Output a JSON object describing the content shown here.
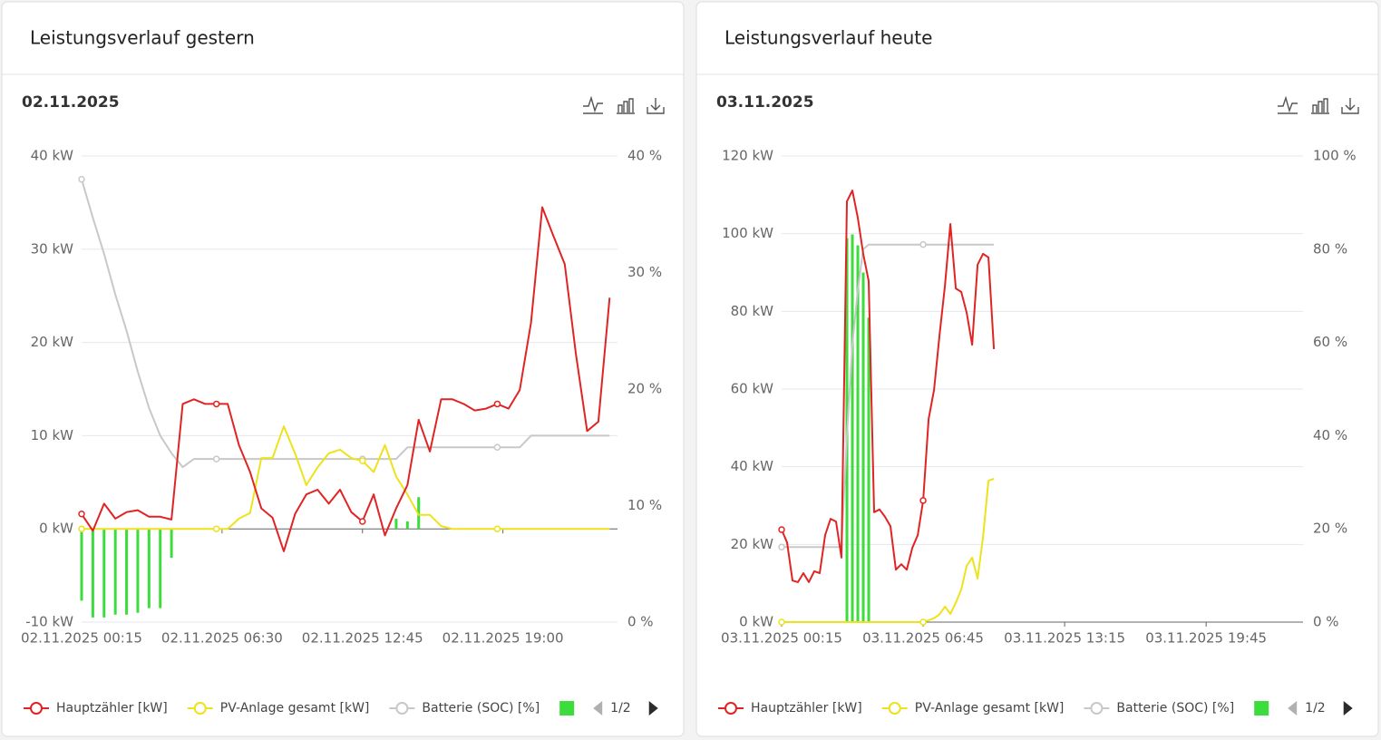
{
  "chart_data": [
    {
      "type": "line",
      "title": "Leistungsverlauf gestern",
      "subtitle": "02.11.2025",
      "legend_page": "1/2",
      "grid": true,
      "x": [
        0.25,
        0.75,
        1.25,
        1.75,
        2.25,
        2.75,
        3.25,
        3.75,
        4.25,
        4.75,
        5.25,
        5.75,
        6.25,
        6.75,
        7.25,
        7.75,
        8.25,
        8.75,
        9.25,
        9.75,
        10.25,
        10.75,
        11.25,
        11.75,
        12.25,
        12.75,
        13.25,
        13.75,
        14.25,
        14.75,
        15.25,
        15.75,
        16.25,
        16.75,
        17.25,
        17.75,
        18.25,
        18.75,
        19.25,
        19.75,
        20.25,
        20.75,
        21.25,
        21.75,
        22.25,
        22.75,
        23.25,
        23.75
      ],
      "xlim": [
        0.25,
        24.1
      ],
      "xticks": [
        {
          "value": 0.25,
          "label": "02.11.2025 00:15"
        },
        {
          "value": 6.5,
          "label": "02.11.2025 06:30"
        },
        {
          "value": 12.75,
          "label": "02.11.2025 12:45"
        },
        {
          "value": 19,
          "label": "02.11.2025 19:00"
        }
      ],
      "ylim": [
        -10,
        40
      ],
      "yticks": [
        {
          "value": -10,
          "label": "-10 kW"
        },
        {
          "value": 0,
          "label": "0 kW"
        },
        {
          "value": 10,
          "label": "10 kW"
        },
        {
          "value": 20,
          "label": "20 kW"
        },
        {
          "value": 30,
          "label": "30 kW"
        },
        {
          "value": 40,
          "label": "40 kW"
        }
      ],
      "y2lim": [
        0,
        40
      ],
      "y2ticks": [
        {
          "value": 0,
          "label": "0 %"
        },
        {
          "value": 10,
          "label": "10 %"
        },
        {
          "value": 20,
          "label": "20 %"
        },
        {
          "value": 30,
          "label": "30 %"
        },
        {
          "value": 40,
          "label": "40 %"
        }
      ],
      "series": [
        {
          "name": "Hauptzähler [kW]",
          "color": "#e02424",
          "values": [
            1.6,
            -0.2,
            2.7,
            1.1,
            1.8,
            2,
            1.3,
            1.3,
            1,
            13.4,
            13.9,
            13.4,
            13.4,
            13.4,
            9,
            6.1,
            2.2,
            1.2,
            -2.4,
            1.6,
            3.7,
            4.2,
            2.7,
            4.2,
            1.8,
            0.8,
            3.7,
            -0.7,
            2.2,
            4.7,
            11.7,
            8.3,
            13.9,
            13.9,
            13.4,
            12.7,
            12.9,
            13.4,
            12.9,
            14.9,
            22.1,
            34.5,
            31.4,
            28.4,
            18.7,
            10.5,
            11.5,
            24.8
          ]
        },
        {
          "name": "PV-Anlage gesamt [kW]",
          "color": "#ede21b",
          "values": [
            0,
            0,
            0,
            0,
            0,
            0,
            0,
            0,
            0,
            0,
            0,
            0,
            0,
            0,
            1.1,
            1.7,
            7.6,
            7.6,
            11,
            8.1,
            4.7,
            6.6,
            8.1,
            8.5,
            7.6,
            7.3,
            6.1,
            9,
            5.6,
            3.7,
            1.5,
            1.5,
            0.3,
            0,
            0,
            0,
            0,
            0,
            0,
            0,
            0,
            0,
            0,
            0,
            0,
            0,
            0,
            0
          ]
        },
        {
          "name": "Batterie (SOC) [%]",
          "color": "#c8c8c8",
          "axis": "y2",
          "values": [
            38,
            34.7,
            31.6,
            28.1,
            25,
            21.5,
            18.4,
            16,
            14.5,
            13.3,
            14,
            14,
            14,
            14,
            14,
            14,
            14,
            14,
            14,
            14,
            14,
            14,
            14,
            14,
            14,
            14,
            14,
            14,
            14,
            15,
            15,
            15,
            15,
            15,
            15,
            15,
            15,
            15,
            15,
            15,
            16,
            16,
            16,
            16,
            16,
            16,
            16,
            16
          ]
        },
        {
          "type": "bar",
          "color": "#3ddc3d",
          "values": [
            -7.7,
            -9.5,
            -9.5,
            -9.2,
            -9.2,
            -9,
            -8.5,
            -8.5,
            -3.1,
            0,
            0,
            0,
            0,
            0,
            0,
            0,
            0,
            0,
            0,
            0,
            0,
            0,
            0,
            0,
            0,
            0,
            0,
            0,
            1.1,
            0.8,
            3.4,
            0,
            0,
            0,
            0,
            0,
            0,
            0,
            0,
            0,
            0,
            0,
            0,
            0,
            0,
            0,
            0,
            0
          ]
        }
      ]
    },
    {
      "type": "line",
      "title": "Leistungsverlauf heute",
      "subtitle": "03.11.2025",
      "legend_page": "1/2",
      "grid": true,
      "x": [
        0.25,
        0.5,
        0.75,
        1,
        1.25,
        1.5,
        1.75,
        2,
        2.25,
        2.5,
        2.75,
        3,
        3.25,
        3.5,
        3.75,
        4,
        4.25,
        4.5,
        4.75,
        5,
        5.25,
        5.5,
        5.75,
        6,
        6.25,
        6.5,
        6.75,
        7,
        7.25,
        7.5,
        7.75,
        8,
        8.25,
        8.5,
        8.75,
        9,
        9.25,
        9.5,
        9.75,
        10
      ],
      "xlim": [
        0.25,
        24.2
      ],
      "xticks": [
        {
          "value": 0.25,
          "label": "03.11.2025 00:15"
        },
        {
          "value": 6.75,
          "label": "03.11.2025 06:45"
        },
        {
          "value": 13.25,
          "label": "03.11.2025 13:15"
        },
        {
          "value": 19.75,
          "label": "03.11.2025 19:45"
        }
      ],
      "ylim": [
        0,
        120
      ],
      "yticks": [
        {
          "value": 0,
          "label": "0 kW"
        },
        {
          "value": 20,
          "label": "20 kW"
        },
        {
          "value": 40,
          "label": "40 kW"
        },
        {
          "value": 60,
          "label": "60 kW"
        },
        {
          "value": 80,
          "label": "80 kW"
        },
        {
          "value": 100,
          "label": "100 kW"
        },
        {
          "value": 120,
          "label": "120 kW"
        }
      ],
      "y2lim": [
        0,
        100
      ],
      "y2ticks": [
        {
          "value": 0,
          "label": "0 %"
        },
        {
          "value": 20,
          "label": "20 %"
        },
        {
          "value": 40,
          "label": "40 %"
        },
        {
          "value": 60,
          "label": "60 %"
        },
        {
          "value": 80,
          "label": "80 %"
        },
        {
          "value": 100,
          "label": "100 %"
        }
      ],
      "series": [
        {
          "name": "Hauptzähler [kW]",
          "color": "#e02424",
          "values": [
            23.8,
            20.5,
            10.7,
            10.3,
            12.6,
            10.3,
            13.1,
            12.6,
            22.4,
            26.6,
            25.9,
            16.6,
            108.3,
            111.1,
            104.1,
            94.8,
            87.8,
            28.3,
            29,
            27.1,
            24.7,
            13.5,
            14.9,
            13.5,
            19.1,
            22.4,
            31.3,
            52.3,
            59.8,
            73.8,
            86.6,
            102.5,
            85.9,
            85,
            79.6,
            71.4,
            92,
            94.8,
            93.9,
            70.3
          ]
        },
        {
          "name": "PV-Anlage gesamt [kW]",
          "color": "#ede21b",
          "values": [
            0,
            0,
            0,
            0,
            0,
            0,
            0,
            0,
            0,
            0,
            0,
            0,
            0,
            0,
            0,
            0,
            0,
            0,
            0,
            0,
            0,
            0,
            0,
            0,
            0,
            0,
            0,
            0.5,
            1,
            2,
            4,
            2.1,
            5,
            8.4,
            14.5,
            16.6,
            11.2,
            21.9,
            36.4,
            36.9
          ]
        },
        {
          "name": "Batterie (SOC) [%]",
          "color": "#c8c8c8",
          "axis": "y2",
          "values": [
            16.1,
            16.1,
            16.1,
            16.1,
            16.1,
            16.1,
            16.1,
            16.1,
            16.1,
            16.1,
            16.1,
            16.1,
            40,
            59.5,
            71.2,
            80,
            81,
            81,
            81,
            81,
            81,
            81,
            81,
            81,
            81,
            81,
            81,
            81,
            81,
            81,
            81,
            81,
            81,
            81,
            81,
            81,
            81,
            81,
            81,
            81
          ]
        },
        {
          "type": "bar",
          "color": "#3ddc3d",
          "values": [
            0,
            0,
            0,
            0,
            0,
            0,
            0,
            0,
            0,
            0,
            0,
            0,
            98.8,
            99.8,
            97,
            90,
            78.4,
            0,
            0,
            0,
            0,
            0,
            0,
            0,
            0,
            0,
            0,
            0,
            0,
            0,
            0,
            0,
            0,
            0,
            0,
            0,
            0,
            0,
            0,
            0
          ]
        }
      ]
    }
  ]
}
